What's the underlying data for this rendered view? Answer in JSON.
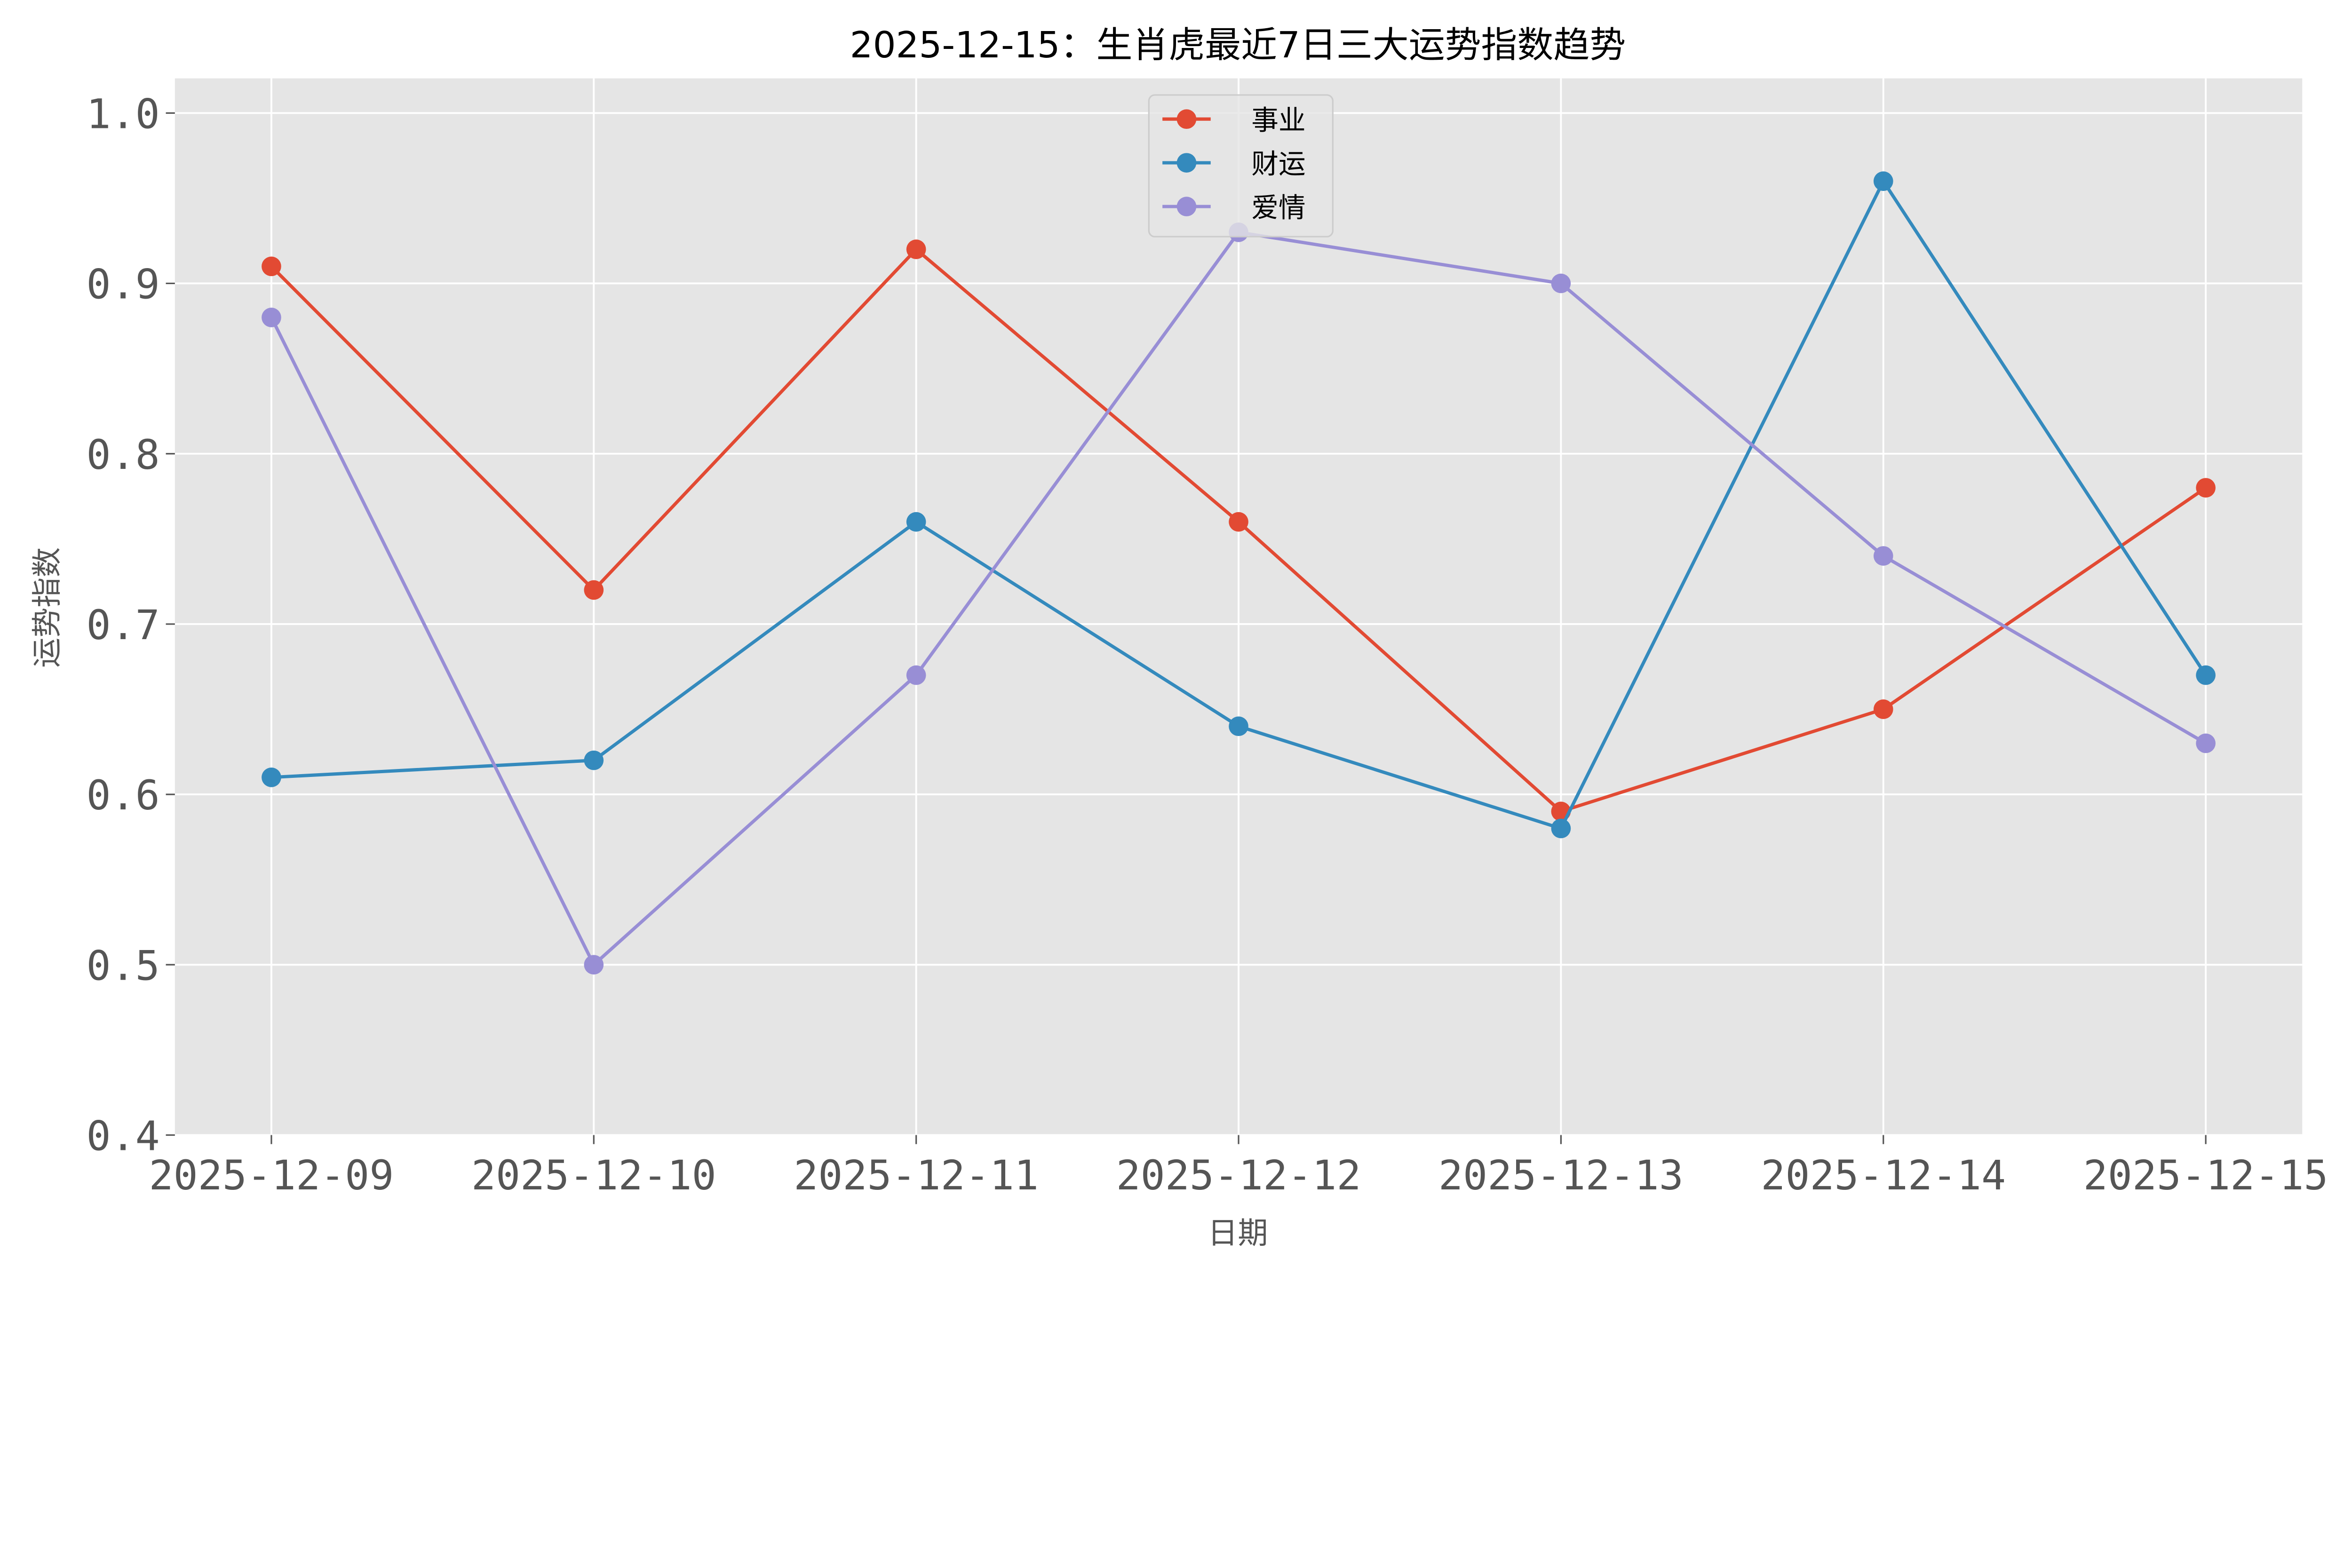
{
  "chart_data": {
    "type": "line",
    "title": "2025-12-15：生肖虎最近7日三大运势指数趋势",
    "xlabel": "日期",
    "ylabel": "运势指数",
    "categories": [
      "2025-12-09",
      "2025-12-10",
      "2025-12-11",
      "2025-12-12",
      "2025-12-13",
      "2025-12-14",
      "2025-12-15"
    ],
    "ylim": [
      0.4,
      1.02
    ],
    "yticks": [
      "0.4",
      "0.5",
      "0.6",
      "0.7",
      "0.8",
      "0.9",
      "1.0"
    ],
    "grid": true,
    "legend_position": "top-center",
    "series": [
      {
        "name": "事业",
        "color": "#E24A33",
        "values": [
          0.91,
          0.72,
          0.92,
          0.76,
          0.59,
          0.65,
          0.78
        ]
      },
      {
        "name": "财运",
        "color": "#348ABD",
        "values": [
          0.61,
          0.62,
          0.76,
          0.64,
          0.58,
          0.96,
          0.67
        ]
      },
      {
        "name": "爱情",
        "color": "#988ED5",
        "values": [
          0.88,
          0.5,
          0.67,
          0.93,
          0.9,
          0.74,
          0.63
        ]
      }
    ]
  }
}
